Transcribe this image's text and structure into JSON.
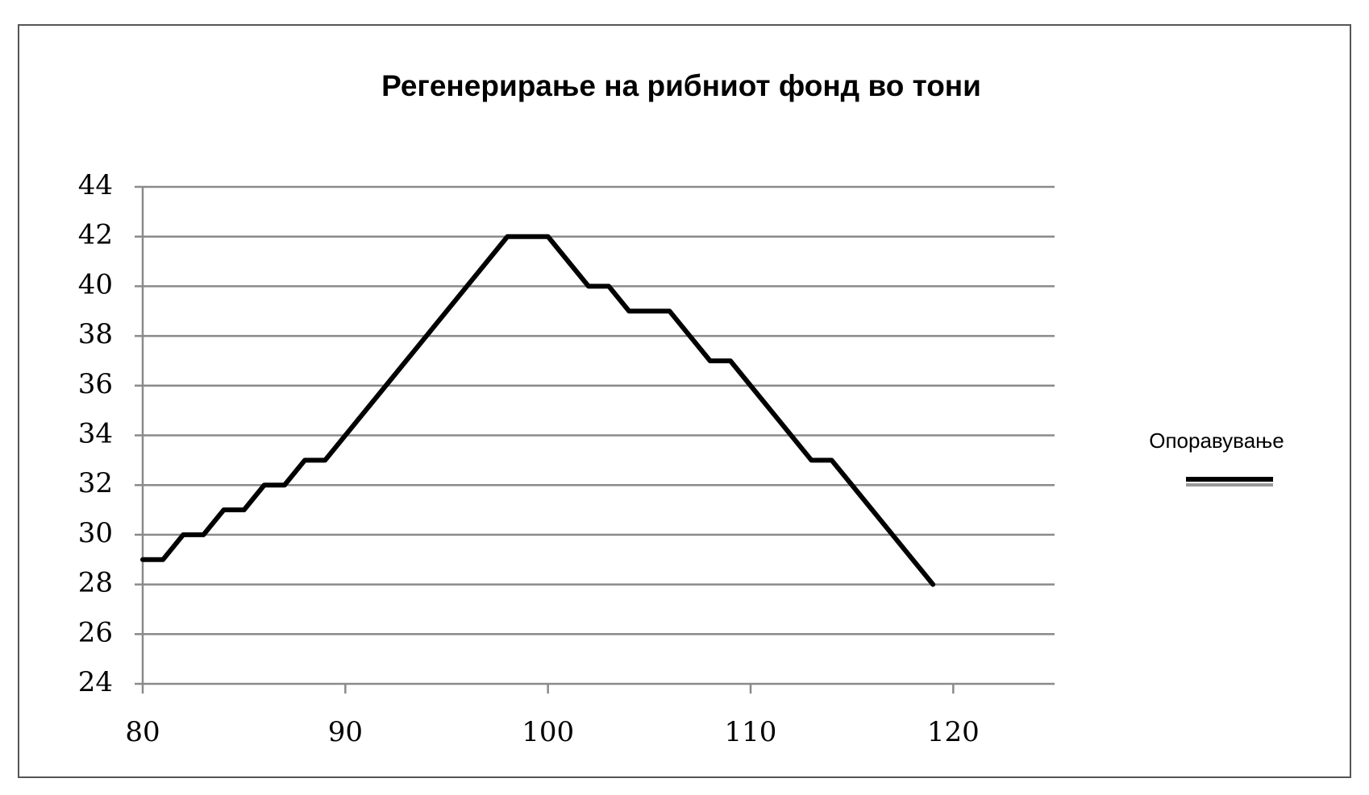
{
  "chart_data": {
    "type": "line",
    "title": "Регенерирање на рибниот фонд во тони",
    "x": [
      80,
      81,
      82,
      83,
      84,
      85,
      86,
      87,
      88,
      89,
      90,
      91,
      92,
      93,
      94,
      95,
      96,
      97,
      98,
      99,
      100,
      101,
      102,
      103,
      104,
      105,
      106,
      107,
      108,
      109,
      110,
      111,
      112,
      113,
      114,
      115,
      116,
      117,
      118,
      119
    ],
    "series": [
      {
        "name": "Опоравување",
        "color": "#000000",
        "values": [
          29,
          29,
          30,
          30,
          31,
          31,
          32,
          32,
          33,
          33,
          34,
          35,
          36,
          37,
          38,
          39,
          40,
          41,
          42,
          42,
          42,
          41,
          40,
          40,
          39,
          39,
          39,
          38,
          37,
          37,
          36,
          35,
          34,
          33,
          33,
          32,
          31,
          30,
          29,
          28
        ]
      }
    ],
    "xlim": [
      80,
      125
    ],
    "xticks": [
      80,
      90,
      100,
      110,
      120
    ],
    "ylim": [
      24,
      44
    ],
    "yticks": [
      24,
      26,
      28,
      30,
      32,
      34,
      36,
      38,
      40,
      42,
      44
    ],
    "grid": true,
    "legend": "right"
  }
}
